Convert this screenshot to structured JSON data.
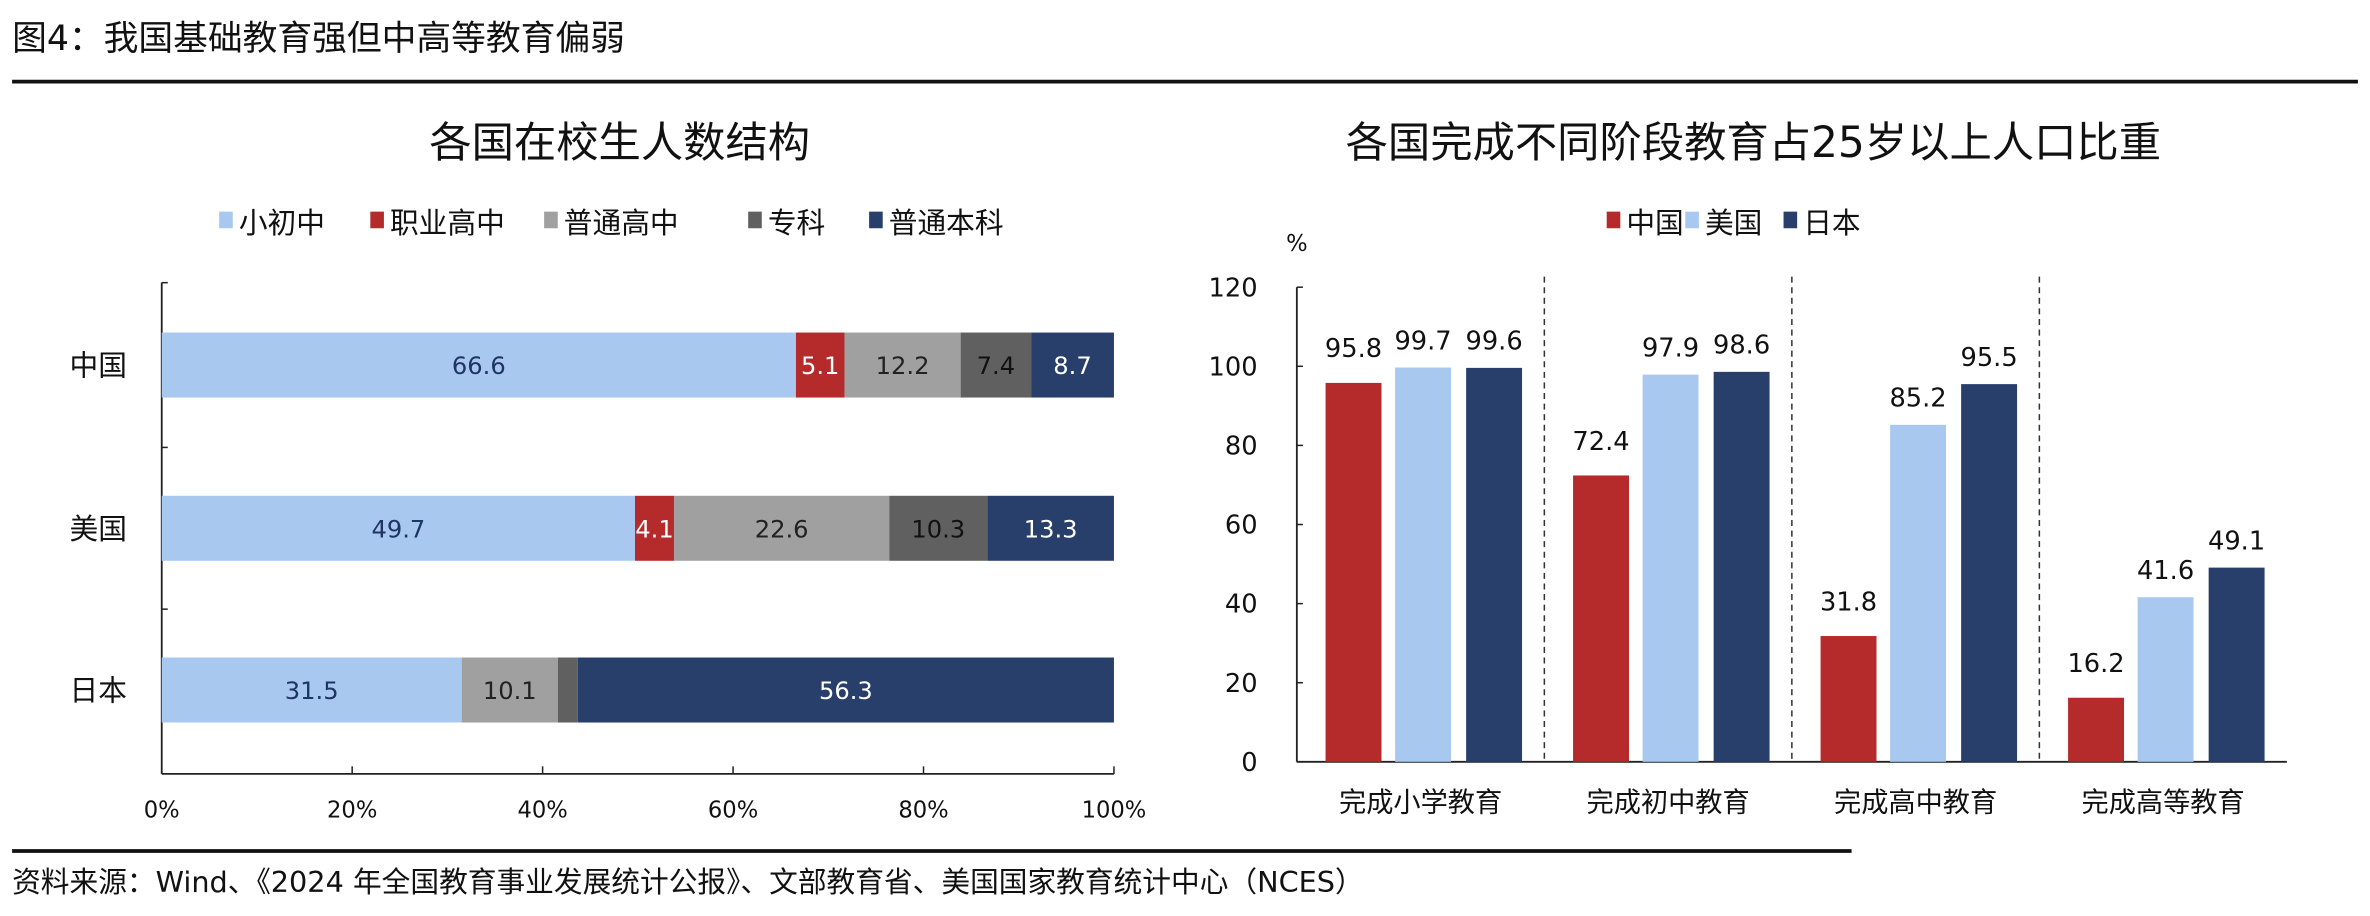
{
  "figure_title": "图4：我国基础教育强但中高等教育偏弱",
  "source": "资料来源：Wind、《2024 年全国教育事业发展统计公报》、文部教育省、美国国家教育统计中心（NCES）",
  "chart_data": [
    {
      "type": "bar",
      "orientation": "horizontal-stacked",
      "title": "各国在校生人数结构",
      "categories": [
        "中国",
        "美国",
        "日本"
      ],
      "series": [
        {
          "name": "小初中",
          "color": "#a9c8f0",
          "values": [
            66.6,
            49.7,
            31.5
          ],
          "labels": [
            "66.6",
            "49.7",
            "31.5"
          ],
          "label_color": "#1f3563"
        },
        {
          "name": "职业高中",
          "color": "#b52a2a",
          "values": [
            5.1,
            4.1,
            0
          ],
          "labels": [
            "5.1",
            "4.1",
            ""
          ],
          "label_color": "#ffffff"
        },
        {
          "name": "普通高中",
          "color": "#a0a0a0",
          "values": [
            12.2,
            22.6,
            10.1
          ],
          "labels": [
            "12.2",
            "22.6",
            "10.1"
          ],
          "label_color": "#222222"
        },
        {
          "name": "专科",
          "color": "#606060",
          "values": [
            7.4,
            10.3,
            2.1
          ],
          "labels": [
            "7.4",
            "10.3",
            ""
          ],
          "label_color": "#111111"
        },
        {
          "name": "普通本科",
          "color": "#283f6b",
          "values": [
            8.7,
            13.3,
            56.3
          ],
          "labels": [
            "8.7",
            "13.3",
            "56.3"
          ],
          "label_color": "#ffffff"
        }
      ],
      "xlim": [
        0,
        100
      ],
      "xticks": [
        "0%",
        "20%",
        "40%",
        "60%",
        "80%",
        "100%"
      ],
      "legend": "top"
    },
    {
      "type": "bar",
      "orientation": "vertical-grouped",
      "title": "各国完成不同阶段教育占25岁以上人口比重",
      "ylabel": "%",
      "categories": [
        "完成小学教育",
        "完成初中教育",
        "完成高中教育",
        "完成高等教育"
      ],
      "series": [
        {
          "name": "中国",
          "color": "#b52a2a",
          "values": [
            95.8,
            72.4,
            31.8,
            16.2
          ]
        },
        {
          "name": "美国",
          "color": "#a9c8f0",
          "values": [
            99.7,
            97.9,
            85.2,
            41.6
          ]
        },
        {
          "name": "日本",
          "color": "#283f6b",
          "values": [
            99.6,
            98.6,
            95.5,
            49.1
          ]
        }
      ],
      "ylim": [
        0,
        120
      ],
      "yticks": [
        "0",
        "20",
        "40",
        "60",
        "80",
        "100",
        "120"
      ],
      "legend": "top"
    }
  ]
}
